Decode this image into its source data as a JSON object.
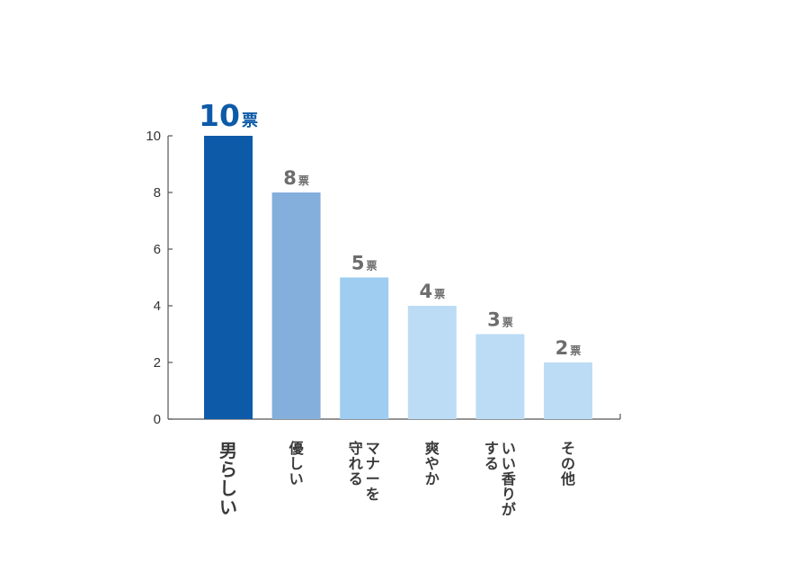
{
  "chart_data": {
    "type": "bar",
    "unit": "票",
    "categories": [
      "男らしい",
      "優しい",
      "マナーを守れる",
      "爽やか",
      "いい香りがする",
      "その他"
    ],
    "category_lines": [
      [
        "男らしい"
      ],
      [
        "優しい"
      ],
      [
        "マナーを",
        "守れる"
      ],
      [
        "爽やか"
      ],
      [
        "いい香りが",
        "する"
      ],
      [
        "その他"
      ]
    ],
    "values": [
      10,
      8,
      5,
      4,
      3,
      2
    ],
    "bar_colors": [
      "#0d5ba8",
      "#84afdc",
      "#9ecdf1",
      "#bcdcf5",
      "#bcdcf5",
      "#bcdcf5"
    ],
    "highlight_color": "#0d5ba8",
    "value_label_color": "#6d6d6d",
    "ylim": [
      0,
      10
    ],
    "yticks": [
      0,
      2,
      4,
      6,
      8,
      10
    ],
    "grid": false,
    "legend": "none"
  }
}
